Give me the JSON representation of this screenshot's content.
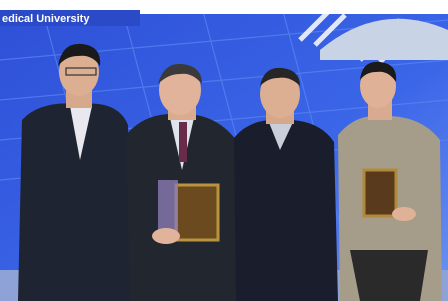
{
  "banner": {
    "text": "edical University"
  }
}
